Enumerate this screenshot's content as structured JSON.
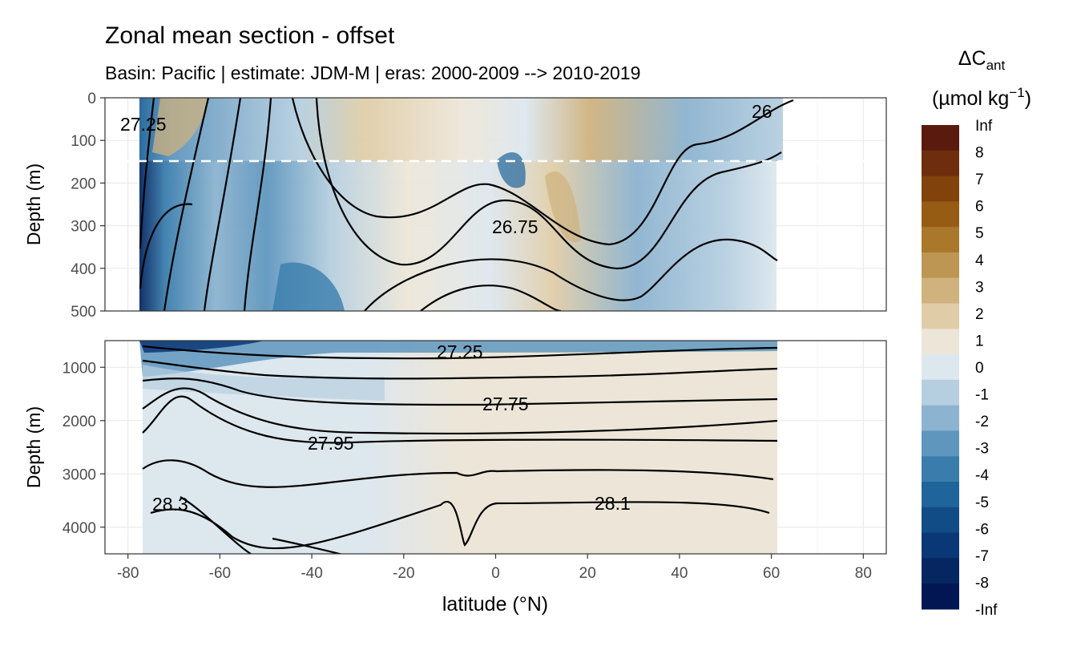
{
  "chart_data": {
    "type": "heatmap",
    "title": "Zonal mean section - offset",
    "subtitle": "Basin: Pacific | estimate: JDM-M | eras: 2000-2009 --> 2010-2019",
    "xlabel": "latitude (°N)",
    "xlim": [
      -85,
      85
    ],
    "x_ticks": [
      "-80",
      "-60",
      "-40",
      "-20",
      "0",
      "20",
      "40",
      "60",
      "80"
    ],
    "panels": [
      {
        "name": "upper",
        "ylabel": "Depth (m)",
        "ylim": [
          0,
          500
        ],
        "y_ticks": [
          "0",
          "100",
          "200",
          "300",
          "400",
          "500"
        ],
        "dashed_line_depth": 150,
        "contour_labels": [
          "27.25",
          "26.75",
          "26"
        ]
      },
      {
        "name": "lower",
        "ylabel": "Depth (m)",
        "ylim": [
          500,
          4500
        ],
        "y_ticks": [
          "1000",
          "2000",
          "3000",
          "4000"
        ],
        "contour_labels": [
          "27.25",
          "27.75",
          "27.95",
          "28.3",
          "28.1"
        ]
      }
    ],
    "legend": {
      "title": "ΔC",
      "title_sub": "ant",
      "unit_text": "(µmol kg",
      "unit_sup": "−1",
      "unit_close": ")",
      "placement": "right",
      "labels": [
        "Inf",
        "8",
        "7",
        "6",
        "5",
        "4",
        "3",
        "2",
        "1",
        "0",
        "-1",
        "-2",
        "-3",
        "-4",
        "-5",
        "-6",
        "-7",
        "-8",
        "-Inf"
      ],
      "colors": [
        "#5b1a0e",
        "#6e2e0d",
        "#82420c",
        "#965c14",
        "#a9782b",
        "#bd9653",
        "#cfb27e",
        "#e0cda8",
        "#ede6d8",
        "#dde7ee",
        "#b6cfe0",
        "#8cb3cf",
        "#5f96be",
        "#3a7dad",
        "#1f649a",
        "#114c86",
        "#0a3776",
        "#062661",
        "#031654"
      ]
    }
  }
}
